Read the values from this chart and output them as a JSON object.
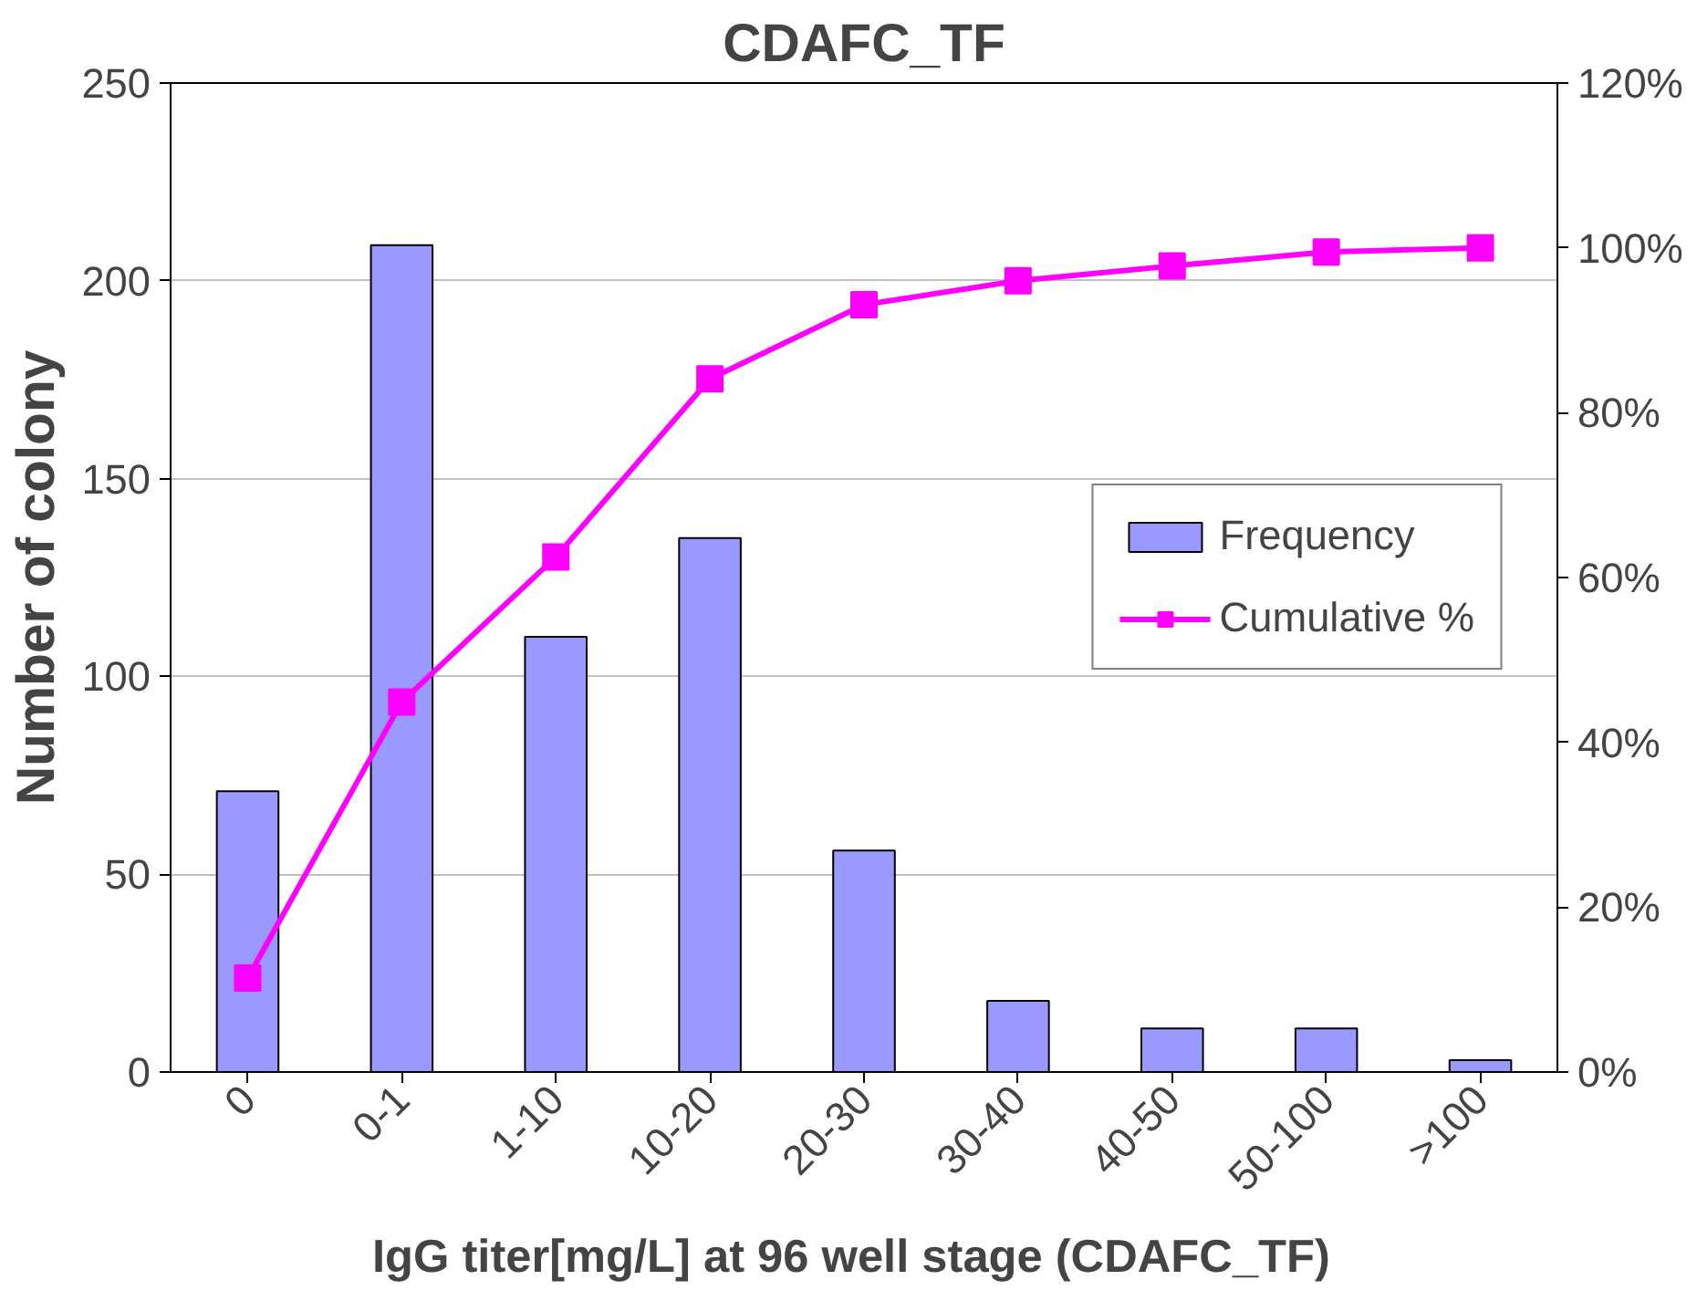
{
  "chart_data": {
    "type": "bar",
    "title": "CDAFC_TF",
    "xlabel": "IgG titer[mg/L]  at 96 well stage  (CDAFC_TF)",
    "ylabel": "Number of colony",
    "categories": [
      "0",
      "0-1",
      "1-10",
      "10-20",
      "20-30",
      "30-40",
      "40-50",
      "50-100",
      ">100"
    ],
    "series": [
      {
        "name": "Frequency",
        "color": "#9999ff",
        "values": [
          71,
          209,
          110,
          135,
          56,
          18,
          11,
          11,
          3
        ]
      },
      {
        "name": "Cumulative %",
        "type": "line",
        "axis": "y2",
        "color": "#ff00ff",
        "marker": "square",
        "values": [
          11.4,
          44.9,
          62.5,
          84.1,
          93.1,
          96.0,
          97.8,
          99.5,
          100
        ]
      }
    ],
    "ylim": [
      0,
      250
    ],
    "yticks": [
      0,
      50,
      100,
      150,
      200,
      250
    ],
    "y2lim": [
      0,
      120
    ],
    "y2ticks": [
      {
        "value": 0,
        "label": "0%"
      },
      {
        "value": 20,
        "label": "20%"
      },
      {
        "value": 40,
        "label": "40%"
      },
      {
        "value": 60,
        "label": "60%"
      },
      {
        "value": 80,
        "label": "80%"
      },
      {
        "value": 100,
        "label": "100%"
      },
      {
        "value": 120,
        "label": "120%"
      }
    ],
    "grid": "y",
    "legend": "right"
  }
}
